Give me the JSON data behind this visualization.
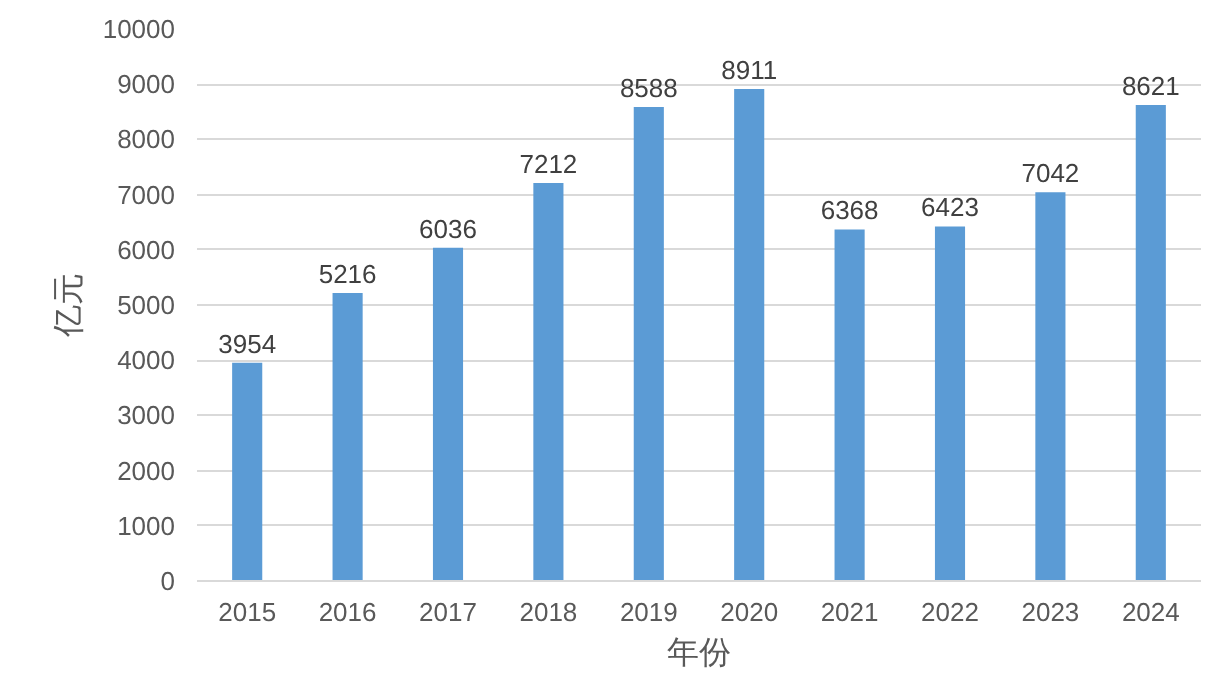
{
  "chart_data": {
    "type": "bar",
    "xlabel": "年份",
    "ylabel": "亿元",
    "categories": [
      "2015",
      "2016",
      "2017",
      "2018",
      "2019",
      "2020",
      "2021",
      "2022",
      "2023",
      "2024"
    ],
    "values": [
      3954,
      5216,
      6036,
      7212,
      8588,
      8911,
      6368,
      6423,
      7042,
      8621
    ],
    "color": "#5b9bd5",
    "ylim": [
      0,
      10000
    ],
    "yticks": [
      0,
      1000,
      2000,
      3000,
      4000,
      5000,
      6000,
      7000,
      8000,
      9000,
      10000
    ],
    "grid": "y",
    "data_labels": true
  }
}
